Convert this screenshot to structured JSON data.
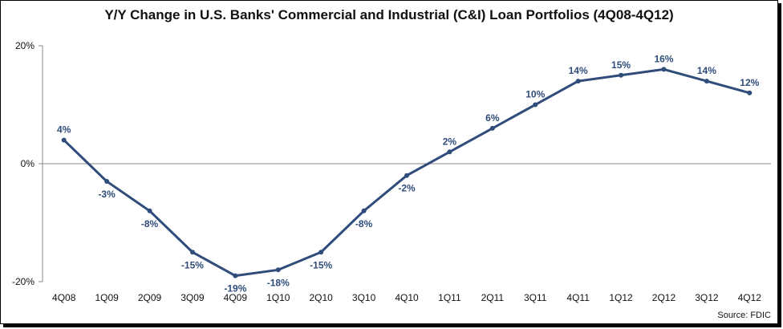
{
  "chart_data": {
    "type": "line",
    "title": "Y/Y Change in U.S. Banks' Commercial and Industrial (C&I) Loan Portfolios (4Q08-4Q12)",
    "categories": [
      "4Q08",
      "1Q09",
      "2Q09",
      "3Q09",
      "4Q09",
      "1Q10",
      "2Q10",
      "3Q10",
      "4Q10",
      "1Q11",
      "2Q11",
      "3Q11",
      "4Q11",
      "1Q12",
      "2Q12",
      "3Q12",
      "4Q12"
    ],
    "series": [
      {
        "values": [
          4,
          -3,
          -8,
          -15,
          -19,
          -18,
          -15,
          -8,
          -2,
          2,
          6,
          10,
          14,
          15,
          16,
          14,
          12
        ],
        "labels": [
          "4%",
          "-3%",
          "-8%",
          "-15%",
          "-19%",
          "-18%",
          "-15%",
          "-8%",
          "-2%",
          "2%",
          "6%",
          "10%",
          "14%",
          "15%",
          "16%",
          "14%",
          "12%"
        ],
        "color": "#2f4c7a"
      }
    ],
    "ylim": [
      -20,
      20
    ],
    "yticks": [
      20,
      0,
      -20
    ],
    "ytick_labels": [
      "20%",
      "0%",
      "-20%"
    ],
    "zero_line": true,
    "grid": false,
    "xlabel": "",
    "ylabel": ""
  },
  "source": "Source: FDIC"
}
